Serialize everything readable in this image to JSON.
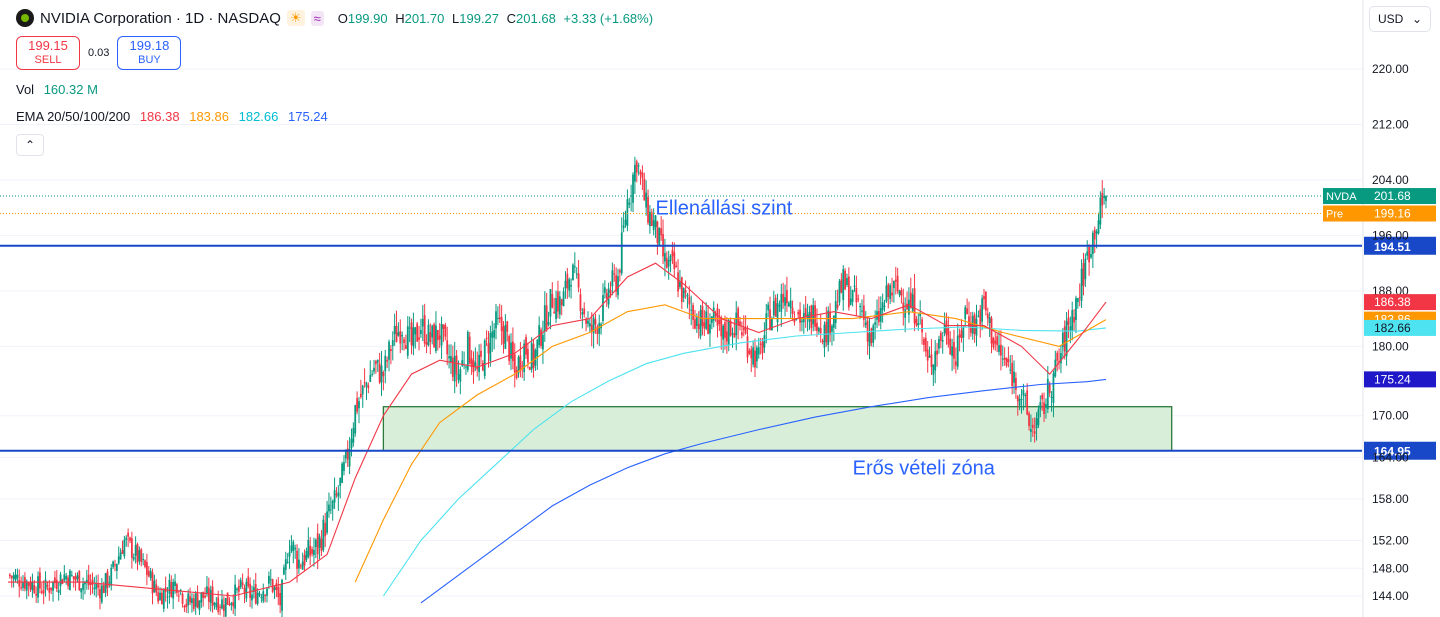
{
  "header": {
    "title": "NVIDIA Corporation · 1D · NASDAQ",
    "session_icon": "sun-icon",
    "session_glyph": "☀",
    "replay_icon": "wave-icon",
    "replay_glyph": "≈",
    "ohlc": {
      "o_label": "O",
      "o": "199.90",
      "h_label": "H",
      "h": "201.70",
      "l_label": "L",
      "l": "199.27",
      "c_label": "C",
      "c": "201.68",
      "change": "+3.33 (+1.68%)"
    }
  },
  "trade": {
    "sell_price": "199.15",
    "sell_label": "SELL",
    "spread": "0.03",
    "buy_price": "199.18",
    "buy_label": "BUY"
  },
  "indicators": {
    "vol_label": "Vol",
    "vol_value": "160.32 M",
    "ema_label": "EMA 20/50/100/200",
    "ema_values": [
      "186.38",
      "183.86",
      "182.66",
      "175.24"
    ]
  },
  "collapse_glyph": "⌃",
  "currency": {
    "label": "USD",
    "arrow": "⌄"
  },
  "colors": {
    "up": "#089981",
    "down": "#f23645",
    "ema20": "#f23645",
    "ema50": "#ff9800",
    "ema100": "#4de3f0",
    "ema200": "#2962ff",
    "level": "#1848c8",
    "annotation": "#2962ff",
    "zone_fill": "#d9eed9",
    "zone_border": "#2b7a3a"
  },
  "chart_data": {
    "type": "candlestick",
    "ticker": "NVDA",
    "ylim": [
      142,
      226
    ],
    "y_ticks": [
      "220.00",
      "212.00",
      "204.00",
      "196.00",
      "188.00",
      "180.00",
      "170.00",
      "164.00",
      "158.00",
      "152.00",
      "148.00",
      "144.00"
    ],
    "close_path": [
      [
        0,
        147
      ],
      [
        10,
        146
      ],
      [
        20,
        145
      ],
      [
        30,
        147
      ],
      [
        40,
        146
      ],
      [
        50,
        145
      ],
      [
        55,
        147
      ],
      [
        62,
        152
      ],
      [
        68,
        150
      ],
      [
        75,
        147
      ],
      [
        80,
        144
      ],
      [
        90,
        146
      ],
      [
        95,
        143
      ],
      [
        105,
        144
      ],
      [
        115,
        143
      ],
      [
        125,
        145
      ],
      [
        130,
        144
      ],
      [
        140,
        146
      ],
      [
        145,
        143
      ],
      [
        150,
        152
      ],
      [
        155,
        149
      ],
      [
        165,
        151
      ],
      [
        170,
        155
      ],
      [
        175,
        158
      ],
      [
        180,
        163
      ],
      [
        185,
        171
      ],
      [
        190,
        174
      ],
      [
        195,
        177
      ],
      [
        200,
        176
      ],
      [
        205,
        181
      ],
      [
        210,
        183
      ],
      [
        215,
        180
      ],
      [
        220,
        183
      ],
      [
        225,
        181
      ],
      [
        230,
        182
      ],
      [
        235,
        178
      ],
      [
        240,
        176
      ],
      [
        245,
        180
      ],
      [
        250,
        176
      ],
      [
        255,
        180
      ],
      [
        260,
        183
      ],
      [
        265,
        182
      ],
      [
        270,
        176
      ],
      [
        275,
        180
      ],
      [
        280,
        178
      ],
      [
        285,
        183
      ],
      [
        290,
        187
      ],
      [
        295,
        186
      ],
      [
        300,
        191
      ],
      [
        305,
        187
      ],
      [
        310,
        182
      ],
      [
        315,
        184
      ],
      [
        320,
        188
      ],
      [
        325,
        190
      ],
      [
        330,
        201
      ],
      [
        335,
        207
      ],
      [
        340,
        200
      ],
      [
        345,
        197
      ],
      [
        350,
        192
      ],
      [
        355,
        191
      ],
      [
        360,
        187
      ],
      [
        365,
        185
      ],
      [
        370,
        183
      ],
      [
        375,
        184
      ],
      [
        380,
        181
      ],
      [
        385,
        183
      ],
      [
        390,
        183
      ],
      [
        395,
        180
      ],
      [
        400,
        178
      ],
      [
        405,
        184
      ],
      [
        410,
        186
      ],
      [
        415,
        188
      ],
      [
        420,
        185
      ],
      [
        425,
        183
      ],
      [
        430,
        185
      ],
      [
        435,
        182
      ],
      [
        440,
        185
      ],
      [
        445,
        189
      ],
      [
        450,
        187
      ],
      [
        455,
        185
      ],
      [
        460,
        181
      ],
      [
        465,
        185
      ],
      [
        470,
        188
      ],
      [
        475,
        188
      ],
      [
        480,
        186
      ],
      [
        485,
        185
      ],
      [
        490,
        177
      ],
      [
        495,
        180
      ],
      [
        500,
        183
      ],
      [
        505,
        178
      ],
      [
        510,
        185
      ],
      [
        515,
        183
      ],
      [
        520,
        186
      ],
      [
        525,
        181
      ],
      [
        530,
        178
      ],
      [
        535,
        176
      ],
      [
        540,
        173
      ],
      [
        545,
        168
      ],
      [
        550,
        170
      ],
      [
        555,
        174
      ],
      [
        560,
        178
      ],
      [
        565,
        183
      ],
      [
        570,
        187
      ],
      [
        575,
        193
      ],
      [
        580,
        198
      ],
      [
        585,
        201.68
      ]
    ],
    "n_bars": 585,
    "ema": {
      "ema20": [
        [
          0,
          146
        ],
        [
          40,
          146
        ],
        [
          80,
          145
        ],
        [
          120,
          144
        ],
        [
          150,
          146
        ],
        [
          170,
          150
        ],
        [
          185,
          161
        ],
        [
          200,
          170
        ],
        [
          215,
          176
        ],
        [
          230,
          178
        ],
        [
          250,
          177
        ],
        [
          270,
          179
        ],
        [
          290,
          183
        ],
        [
          310,
          184
        ],
        [
          330,
          190
        ],
        [
          345,
          192
        ],
        [
          360,
          189
        ],
        [
          380,
          184
        ],
        [
          400,
          182
        ],
        [
          420,
          184
        ],
        [
          440,
          185
        ],
        [
          460,
          184
        ],
        [
          480,
          186
        ],
        [
          500,
          183
        ],
        [
          520,
          183
        ],
        [
          540,
          180
        ],
        [
          555,
          176
        ],
        [
          570,
          181
        ],
        [
          585,
          186.38
        ]
      ],
      "ema50": [
        [
          185,
          146
        ],
        [
          200,
          155
        ],
        [
          215,
          163
        ],
        [
          230,
          169
        ],
        [
          250,
          173
        ],
        [
          270,
          176
        ],
        [
          290,
          180
        ],
        [
          310,
          182
        ],
        [
          330,
          185
        ],
        [
          350,
          186
        ],
        [
          370,
          184
        ],
        [
          390,
          184
        ],
        [
          420,
          184
        ],
        [
          450,
          184
        ],
        [
          480,
          185
        ],
        [
          505,
          184
        ],
        [
          530,
          182
        ],
        [
          560,
          180
        ],
        [
          585,
          183.86
        ]
      ],
      "ema100": [
        [
          200,
          144
        ],
        [
          220,
          152
        ],
        [
          240,
          158
        ],
        [
          260,
          163
        ],
        [
          280,
          168
        ],
        [
          300,
          172
        ],
        [
          320,
          175
        ],
        [
          340,
          177.5
        ],
        [
          360,
          179
        ],
        [
          390,
          180.5
        ],
        [
          420,
          181.5
        ],
        [
          450,
          182
        ],
        [
          480,
          182.5
        ],
        [
          510,
          182.8
        ],
        [
          540,
          182.3
        ],
        [
          570,
          182.2
        ],
        [
          585,
          182.66
        ]
      ],
      "ema200": [
        [
          220,
          143
        ],
        [
          245,
          148
        ],
        [
          270,
          153
        ],
        [
          290,
          157
        ],
        [
          310,
          160
        ],
        [
          330,
          162.5
        ],
        [
          350,
          164.5
        ],
        [
          370,
          166
        ],
        [
          400,
          168
        ],
        [
          430,
          169.8
        ],
        [
          460,
          171.3
        ],
        [
          490,
          172.6
        ],
        [
          520,
          173.6
        ],
        [
          550,
          174.5
        ],
        [
          575,
          174.9
        ],
        [
          585,
          175.24
        ]
      ]
    },
    "levels": [
      {
        "name": "resistance",
        "value": 194.51,
        "label": "194.51"
      },
      {
        "name": "support",
        "value": 164.95,
        "label": "164.95"
      }
    ],
    "zone": {
      "bar_from": 200,
      "bar_to": 620,
      "low": 164.95,
      "high": 171.3
    },
    "annotations": [
      {
        "text": "Ellenállási szint",
        "bar": 345,
        "y": 199
      },
      {
        "text": "Erős vételi zóna",
        "bar": 450,
        "y": 161.5
      }
    ],
    "price_tags": [
      {
        "label": "NVDA",
        "value": "201.68",
        "y": 201.68
      },
      {
        "label": "Pre",
        "value": "199.16",
        "y": 199.16
      },
      {
        "label": "",
        "value": "186.38",
        "y": 186.38
      },
      {
        "label": "",
        "value": "183.86",
        "y": 183.86
      },
      {
        "label": "",
        "value": "182.66",
        "y": 182.66
      },
      {
        "label": "",
        "value": "175.24",
        "y": 175.24
      }
    ]
  }
}
